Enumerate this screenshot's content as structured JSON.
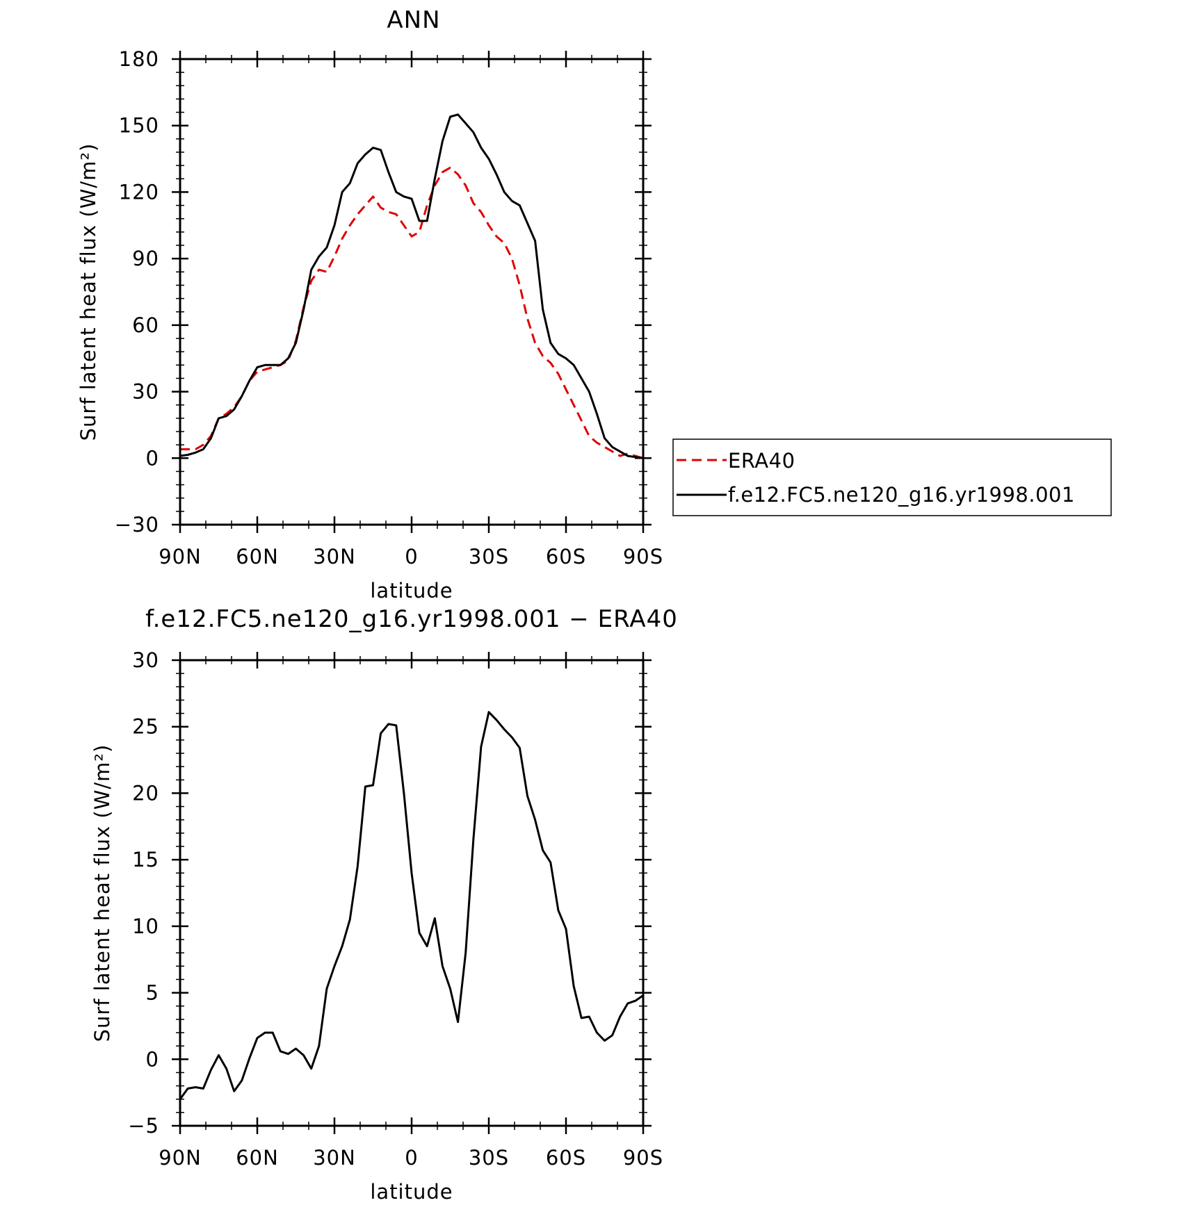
{
  "chart_data": [
    {
      "type": "line",
      "title": "ANN",
      "xlabel": "latitude",
      "ylabel": "Surf latent heat flux (W/m²)",
      "xlim": [
        90,
        -90
      ],
      "ylim": [
        -30,
        180
      ],
      "yticks": [
        -30,
        0,
        30,
        60,
        90,
        120,
        150,
        180
      ],
      "xticks": [
        90,
        60,
        30,
        0,
        -30,
        -60,
        -90
      ],
      "xtick_labels": [
        "90N",
        "60N",
        "30N",
        "0",
        "30S",
        "60S",
        "90S"
      ],
      "ytick_labels": [
        "−30",
        "0",
        "30",
        "60",
        "90",
        "120",
        "150",
        "180"
      ],
      "legend": "right",
      "series": [
        {
          "name": "ERA40",
          "color": "#e00000",
          "style": "dashed",
          "x": [
            90,
            87,
            84,
            81,
            78,
            75,
            72,
            69,
            66,
            63,
            60,
            57,
            54,
            51,
            48,
            45,
            42,
            39,
            36,
            33,
            30,
            27,
            24,
            21,
            18,
            15,
            12,
            9,
            6,
            3,
            0,
            -3,
            -6,
            -9,
            -12,
            -15,
            -18,
            -21,
            -24,
            -27,
            -30,
            -33,
            -36,
            -39,
            -42,
            -45,
            -48,
            -51,
            -54,
            -57,
            -60,
            -63,
            -66,
            -69,
            -72,
            -75,
            -78,
            -81,
            -84,
            -87,
            -90
          ],
          "y": [
            4,
            4,
            4,
            6,
            10,
            18,
            20,
            23,
            28,
            35,
            39,
            40,
            41,
            42,
            44,
            53,
            68,
            80,
            85,
            84,
            91,
            99,
            105,
            110,
            114,
            118,
            113,
            111,
            110,
            105,
            100,
            102,
            114,
            123,
            129,
            131,
            128,
            123,
            115,
            111,
            105,
            100,
            97,
            90,
            78,
            63,
            52,
            46,
            43,
            38,
            31,
            24,
            17,
            10,
            7,
            5,
            3,
            1,
            2,
            1,
            0
          ]
        },
        {
          "name": "f.e12.FC5.ne120_g16.yr1998.001",
          "color": "#000000",
          "style": "solid",
          "x": [
            90,
            87,
            84,
            81,
            78,
            75,
            72,
            69,
            66,
            63,
            60,
            57,
            54,
            51,
            48,
            45,
            42,
            39,
            36,
            33,
            30,
            27,
            24,
            21,
            18,
            15,
            12,
            9,
            6,
            3,
            0,
            -3,
            -6,
            -9,
            -12,
            -15,
            -18,
            -21,
            -24,
            -27,
            -30,
            -33,
            -36,
            -39,
            -42,
            -45,
            -48,
            -51,
            -54,
            -57,
            -60,
            -63,
            -66,
            -69,
            -72,
            -75,
            -78,
            -81,
            -84,
            -87,
            -90
          ],
          "y": [
            1,
            1.5,
            2.5,
            4,
            9,
            18,
            19,
            22,
            28,
            35,
            41,
            42,
            42,
            42,
            45,
            52,
            67,
            85,
            91,
            95,
            105,
            120,
            124,
            133,
            137,
            140,
            139,
            129,
            120,
            118,
            117,
            107,
            107,
            126,
            143,
            154,
            155,
            151,
            147,
            140,
            135,
            128,
            120,
            116,
            114,
            106,
            98,
            67,
            52,
            47,
            45,
            42,
            36,
            30,
            20,
            9,
            5,
            3,
            1,
            0.5,
            0
          ]
        }
      ]
    },
    {
      "type": "line",
      "title": "f.e12.FC5.ne120_g16.yr1998.001 − ERA40",
      "xlabel": "latitude",
      "ylabel": "Surf latent heat flux (W/m²)",
      "xlim": [
        90,
        -90
      ],
      "ylim": [
        -5,
        30
      ],
      "yticks": [
        -5,
        0,
        5,
        10,
        15,
        20,
        25,
        30
      ],
      "xticks": [
        90,
        60,
        30,
        0,
        -30,
        -60,
        -90
      ],
      "xtick_labels": [
        "90N",
        "60N",
        "30N",
        "0",
        "30S",
        "60S",
        "90S"
      ],
      "ytick_labels": [
        "−5",
        "0",
        "5",
        "10",
        "15",
        "20",
        "25",
        "30"
      ],
      "series": [
        {
          "color": "#000000",
          "style": "solid",
          "x": [
            90,
            87,
            84,
            81,
            78,
            75,
            72,
            69,
            66,
            63,
            60,
            57,
            54,
            51,
            48,
            45,
            42,
            39,
            36,
            33,
            30,
            27,
            24,
            21,
            18,
            15,
            12,
            9,
            6,
            3,
            0,
            -3,
            -6,
            -9,
            -12,
            -15,
            -18,
            -21,
            -24,
            -27,
            -30,
            -33,
            -36,
            -39,
            -42,
            -45,
            -48,
            -51,
            -54,
            -57,
            -60,
            -63,
            -66,
            -69,
            -72,
            -75,
            -78,
            -81,
            -84,
            -87,
            -90
          ],
          "y": [
            -3,
            -2.2,
            -2.1,
            -2.2,
            -0.8,
            0.3,
            -0.7,
            -2.4,
            -1.6,
            0.1,
            1.6,
            2,
            2,
            0.6,
            0.4,
            0.8,
            0.3,
            -0.7,
            1,
            5.3,
            7,
            8.5,
            10.5,
            14.5,
            20.5,
            20.6,
            24.5,
            25.2,
            25.1,
            20,
            14,
            9.5,
            8.5,
            10.6,
            7,
            5.3,
            2.8,
            8,
            16.5,
            23.5,
            26.1,
            25.5,
            24.8,
            24.2,
            23.4,
            19.8,
            18,
            15.7,
            14.8,
            11.2,
            9.8,
            5.5,
            3.1,
            3.2,
            2,
            1.4,
            1.8,
            3.2,
            4.2,
            4.4,
            4.8
          ]
        }
      ]
    }
  ]
}
